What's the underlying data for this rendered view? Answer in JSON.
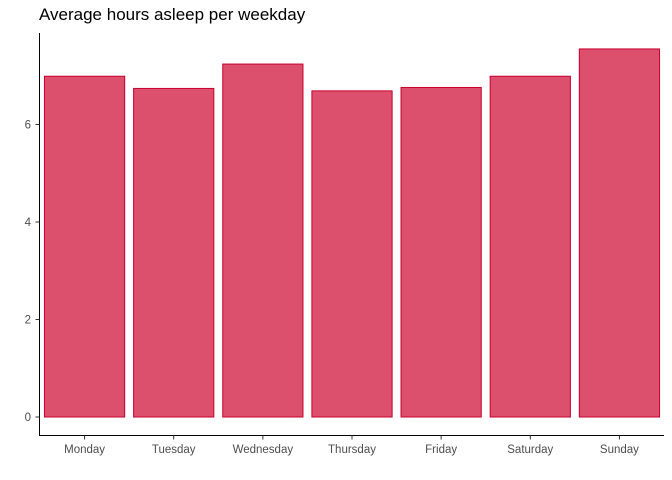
{
  "chart_data": {
    "type": "bar",
    "title": "Average hours asleep per weekday",
    "xlabel": "",
    "ylabel": "",
    "categories": [
      "Monday",
      "Tuesday",
      "Wednesday",
      "Thursday",
      "Friday",
      "Saturday",
      "Sunday"
    ],
    "values": [
      6.99,
      6.74,
      7.24,
      6.69,
      6.76,
      6.99,
      7.55
    ],
    "ylim": [
      0,
      7.9
    ],
    "yticks": [
      "0",
      "2",
      "4",
      "6"
    ],
    "grid": false,
    "legend": "none",
    "colors": {
      "bar_fill": "#dc4f6d",
      "bar_stroke": "#c8002d",
      "axis": "#000000",
      "tick_label": "#4d4d4d"
    }
  }
}
